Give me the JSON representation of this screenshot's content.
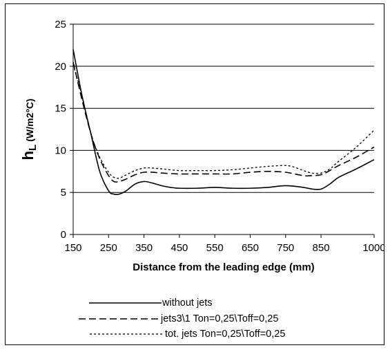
{
  "chart_data": {
    "type": "line",
    "title": "",
    "xlabel": "Distance from the leading edge (mm)",
    "ylabel_main": "h",
    "ylabel_sub": "L",
    "ylabel_units": " (W/m2°C)",
    "xlim": [
      150,
      1000
    ],
    "ylim": [
      0,
      25
    ],
    "xticks": [
      "150",
      "250",
      "350",
      "450",
      "550",
      "650",
      "750",
      "850",
      "1000"
    ],
    "yticks": [
      "0",
      "5",
      "10",
      "15",
      "20",
      "25"
    ],
    "grid": "horizontal",
    "legend_position": "bottom",
    "series": [
      {
        "name": "without jets",
        "style": "solid",
        "x": [
          150,
          175,
          200,
          225,
          250,
          265,
          280,
          300,
          325,
          350,
          375,
          400,
          425,
          450,
          500,
          550,
          600,
          650,
          700,
          750,
          800,
          825,
          850,
          875,
          900,
          950,
          1000
        ],
        "y": [
          22,
          16.5,
          12,
          7.5,
          5.2,
          4.8,
          4.8,
          5.2,
          6,
          6.3,
          6.1,
          5.8,
          5.6,
          5.5,
          5.5,
          5.6,
          5.5,
          5.5,
          5.6,
          5.8,
          5.6,
          5.4,
          5.4,
          6,
          6.8,
          7.8,
          8.9
        ]
      },
      {
        "name": "jets3\\1 Ton=0,25\\Toff=0,25",
        "style": "dashed",
        "x": [
          150,
          175,
          200,
          225,
          250,
          265,
          280,
          300,
          325,
          350,
          375,
          400,
          450,
          500,
          550,
          600,
          650,
          700,
          750,
          800,
          825,
          850,
          875,
          900,
          950,
          1000
        ],
        "y": [
          20.5,
          16,
          12,
          9,
          7,
          6.3,
          6.3,
          6.6,
          7.1,
          7.4,
          7.4,
          7.3,
          7.2,
          7.2,
          7.2,
          7.2,
          7.4,
          7.5,
          7.4,
          7,
          7,
          7.1,
          7.6,
          8.2,
          9.2,
          10.4
        ]
      },
      {
        "name": "tot. jets Ton=0,25\\Toff=0,25",
        "style": "dotted",
        "x": [
          150,
          175,
          200,
          225,
          250,
          265,
          280,
          300,
          325,
          350,
          375,
          400,
          450,
          500,
          550,
          600,
          650,
          700,
          750,
          775,
          800,
          825,
          850,
          875,
          900,
          950,
          1000
        ],
        "y": [
          20.2,
          16.5,
          12,
          9.2,
          7.4,
          6.8,
          6.7,
          7.1,
          7.6,
          7.9,
          7.9,
          7.8,
          7.6,
          7.6,
          7.6,
          7.7,
          7.9,
          8.1,
          8.2,
          8,
          7.6,
          7.3,
          7.3,
          7.8,
          8.7,
          10.4,
          12.4
        ]
      }
    ]
  }
}
